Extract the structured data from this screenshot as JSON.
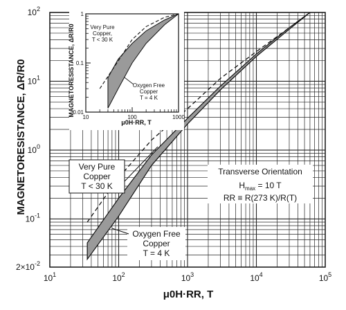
{
  "chart_data": {
    "type": "line",
    "xlabel": "μ0H·RR, T",
    "ylabel": "MAGNETORESISTANCE, ΔR/R0",
    "xscale": "log",
    "yscale": "log",
    "xlim": [
      10,
      100000
    ],
    "ylim": [
      0.02,
      100
    ],
    "grid": true,
    "x_ticks": [
      {
        "base": "10",
        "exp": "1"
      },
      {
        "base": "10",
        "exp": "2"
      },
      {
        "base": "10",
        "exp": "3"
      },
      {
        "base": "10",
        "exp": "4"
      },
      {
        "base": "10",
        "exp": "5"
      }
    ],
    "y_ticks": [
      {
        "value": 0.02,
        "base": "2×10",
        "exp": "-2"
      },
      {
        "value": 0.1,
        "base": "10",
        "exp": "-1"
      },
      {
        "value": 1,
        "base": "10",
        "exp": "0"
      },
      {
        "value": 10,
        "base": "10",
        "exp": "1"
      },
      {
        "value": 100,
        "base": "10",
        "exp": "2"
      }
    ],
    "series": [
      {
        "style": "dashed",
        "x": [
          35,
          100,
          300,
          1000,
          3000,
          10000,
          30000,
          60000
        ],
        "y": [
          0.09,
          0.4,
          1.4,
          4,
          11,
          27,
          60,
          100
        ]
      },
      {
        "style": "band",
        "x": [
          35,
          100,
          300,
          1000,
          3000,
          10000,
          30000,
          60000
        ],
        "y_upper": [
          0.045,
          0.2,
          0.85,
          2.9,
          8.5,
          25,
          60,
          100
        ],
        "y_lower": [
          0.026,
          0.11,
          0.6,
          2.4,
          7.5,
          23,
          57,
          100
        ]
      }
    ],
    "annotations": {
      "very_pure": [
        "Very Pure",
        "Copper",
        "T < 30 K"
      ],
      "oxygen_free": [
        "Oxygen Free",
        "Copper",
        "T = 4 K"
      ],
      "orientation": "Transverse Orientation",
      "hmax": {
        "main": "H",
        "sub": "max",
        "rest": " = 10 T"
      },
      "rr_def": "RR ≡ R(273 K)/R(T)"
    },
    "inset": {
      "xlabel": "μ0H·RR, T",
      "ylabel": "MAGNETORESISTANCE, ΔR/R0",
      "xlim": [
        10,
        1000
      ],
      "ylim": [
        0.01,
        1
      ],
      "x_ticks": [
        "10",
        "100",
        "1000"
      ],
      "y_ticks": [
        {
          "value": 0.01,
          "label": "0.01"
        },
        {
          "value": 0.1,
          "label": "0.1"
        },
        {
          "value": 1,
          "label": "1"
        }
      ],
      "dashed": {
        "x": [
          20,
          50,
          100,
          200,
          500,
          1000
        ],
        "y": [
          0.03,
          0.11,
          0.3,
          0.55,
          0.85,
          1.0
        ]
      },
      "band": {
        "x": [
          30,
          50,
          100,
          200,
          500,
          1000
        ],
        "y_upper": [
          0.05,
          0.12,
          0.25,
          0.45,
          0.75,
          1.0
        ],
        "y_lower": [
          0.012,
          0.03,
          0.1,
          0.25,
          0.6,
          1.0
        ]
      },
      "very_pure": [
        "Very Pure",
        "Copper,",
        "T < 30 K"
      ],
      "oxygen_free": [
        "Oxygen Free",
        "Copper",
        "T = 4 K"
      ]
    }
  }
}
